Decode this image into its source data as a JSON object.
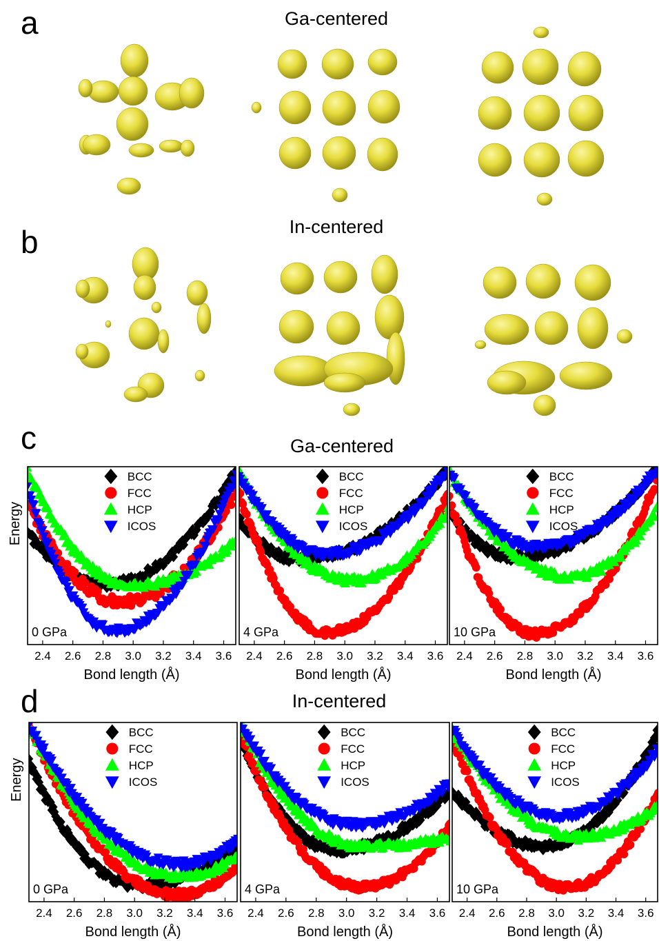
{
  "figure": {
    "panel_letters": [
      "a",
      "b",
      "c",
      "d"
    ],
    "row_headings": {
      "a": "Ga-centered",
      "b": "In-centered",
      "c": "Ga-centered",
      "d": "In-centered"
    },
    "isosurface_color": "#e6dc3c"
  },
  "chart_data": [
    {
      "type": "scatter",
      "id": "c-0",
      "annotation": "0 GPa",
      "xlabel": "Bond length (Å)",
      "ylabel": "Energy",
      "xlim": [
        2.3,
        3.68
      ],
      "ylim": [
        0,
        1
      ],
      "xticks": [
        "2.4",
        "2.6",
        "2.8",
        "3.0",
        "3.2",
        "3.4",
        "3.6"
      ],
      "legend": "top-center",
      "series": [
        {
          "name": "BCC",
          "color": "#000000",
          "marker": "diamond",
          "min_x": 2.82,
          "min_y": 0.34,
          "left_y": 0.63,
          "right_y": 0.98
        },
        {
          "name": "FCC",
          "color": "#ff0000",
          "marker": "circle",
          "min_x": 2.93,
          "min_y": 0.24,
          "left_y": 0.8,
          "right_y": 0.86
        },
        {
          "name": "HCP",
          "color": "#00ff00",
          "marker": "triangle-up",
          "min_x": 3.0,
          "min_y": 0.33,
          "left_y": 0.97,
          "right_y": 0.58
        },
        {
          "name": "ICOS",
          "color": "#0000ff",
          "marker": "triangle-down",
          "min_x": 2.88,
          "min_y": 0.08,
          "left_y": 0.88,
          "right_y": 0.95
        }
      ]
    },
    {
      "type": "scatter",
      "id": "c-4",
      "annotation": "4 GPa",
      "xlabel": "Bond length (Å)",
      "ylabel": "",
      "xlim": [
        2.3,
        3.68
      ],
      "ylim": [
        0,
        1
      ],
      "xticks": [
        "2.4",
        "2.6",
        "2.8",
        "3.0",
        "3.2",
        "3.4",
        "3.6"
      ],
      "legend": "top-center",
      "series": [
        {
          "name": "BCC",
          "color": "#000000",
          "marker": "diamond",
          "min_x": 2.7,
          "min_y": 0.48,
          "left_y": 0.7,
          "right_y": 0.98
        },
        {
          "name": "FCC",
          "color": "#ff0000",
          "marker": "circle",
          "min_x": 2.88,
          "min_y": 0.07,
          "left_y": 0.86,
          "right_y": 0.84
        },
        {
          "name": "HCP",
          "color": "#00ff00",
          "marker": "triangle-up",
          "min_x": 3.05,
          "min_y": 0.36,
          "left_y": 0.97,
          "right_y": 0.75
        },
        {
          "name": "ICOS",
          "color": "#0000ff",
          "marker": "triangle-down",
          "min_x": 2.88,
          "min_y": 0.51,
          "left_y": 0.95,
          "right_y": 0.98
        }
      ]
    },
    {
      "type": "scatter",
      "id": "c-10",
      "annotation": "10 GPa",
      "xlabel": "Bond length (Å)",
      "ylabel": "",
      "xlim": [
        2.3,
        3.68
      ],
      "ylim": [
        0,
        1
      ],
      "xticks": [
        "2.4",
        "2.6",
        "2.8",
        "3.0",
        "3.2",
        "3.4",
        "3.6"
      ],
      "legend": "top-center",
      "series": [
        {
          "name": "BCC",
          "color": "#000000",
          "marker": "diamond",
          "min_x": 2.72,
          "min_y": 0.49,
          "left_y": 0.76,
          "right_y": 0.99
        },
        {
          "name": "FCC",
          "color": "#ff0000",
          "marker": "circle",
          "min_x": 2.86,
          "min_y": 0.06,
          "left_y": 0.82,
          "right_y": 0.94
        },
        {
          "name": "HCP",
          "color": "#00ff00",
          "marker": "triangle-up",
          "min_x": 3.1,
          "min_y": 0.38,
          "left_y": 0.97,
          "right_y": 0.76
        },
        {
          "name": "ICOS",
          "color": "#0000ff",
          "marker": "triangle-down",
          "min_x": 2.88,
          "min_y": 0.55,
          "left_y": 0.96,
          "right_y": 0.99
        }
      ]
    },
    {
      "type": "scatter",
      "id": "d-0",
      "annotation": "0 GPa",
      "xlabel": "Bond length (Å)",
      "ylabel": "Energy",
      "xlim": [
        2.3,
        3.68
      ],
      "ylim": [
        0,
        1
      ],
      "xticks": [
        "2.4",
        "2.6",
        "2.8",
        "3.0",
        "3.2",
        "3.4",
        "3.6"
      ],
      "legend": "top-center",
      "series": [
        {
          "name": "BCC",
          "color": "#000000",
          "marker": "diamond",
          "min_x": 3.02,
          "min_y": 0.09,
          "left_y": 0.78,
          "right_y": 0.3
        },
        {
          "name": "FCC",
          "color": "#ff0000",
          "marker": "circle",
          "min_x": 3.28,
          "min_y": 0.04,
          "left_y": 0.99,
          "right_y": 0.2
        },
        {
          "name": "HCP",
          "color": "#00ff00",
          "marker": "triangle-up",
          "min_x": 3.3,
          "min_y": 0.14,
          "left_y": 0.99,
          "right_y": 0.25
        },
        {
          "name": "ICOS",
          "color": "#0000ff",
          "marker": "triangle-down",
          "min_x": 3.3,
          "min_y": 0.21,
          "left_y": 0.99,
          "right_y": 0.34
        }
      ]
    },
    {
      "type": "scatter",
      "id": "d-4",
      "annotation": "4 GPa",
      "xlabel": "Bond length (Å)",
      "ylabel": "",
      "xlim": [
        2.3,
        3.68
      ],
      "ylim": [
        0,
        1
      ],
      "xticks": [
        "2.4",
        "2.6",
        "2.8",
        "3.0",
        "3.2",
        "3.4",
        "3.6"
      ],
      "legend": "top-center",
      "series": [
        {
          "name": "BCC",
          "color": "#000000",
          "marker": "diamond",
          "min_x": 2.93,
          "min_y": 0.29,
          "left_y": 0.9,
          "right_y": 0.62
        },
        {
          "name": "FCC",
          "color": "#ff0000",
          "marker": "circle",
          "min_x": 3.1,
          "min_y": 0.08,
          "left_y": 0.93,
          "right_y": 0.42
        },
        {
          "name": "HCP",
          "color": "#00ff00",
          "marker": "triangle-up",
          "min_x": 3.1,
          "min_y": 0.31,
          "left_y": 0.99,
          "right_y": 0.35
        },
        {
          "name": "ICOS",
          "color": "#0000ff",
          "marker": "triangle-down",
          "min_x": 3.05,
          "min_y": 0.43,
          "left_y": 0.99,
          "right_y": 0.66
        }
      ]
    },
    {
      "type": "scatter",
      "id": "d-10",
      "annotation": "10 GPa",
      "xlabel": "Bond length (Å)",
      "ylabel": "",
      "xlim": [
        2.3,
        3.68
      ],
      "ylim": [
        0,
        1
      ],
      "xticks": [
        "2.4",
        "2.6",
        "2.8",
        "3.0",
        "3.2",
        "3.4",
        "3.6"
      ],
      "legend": "top-center",
      "series": [
        {
          "name": "BCC",
          "color": "#000000",
          "marker": "diamond",
          "min_x": 2.92,
          "min_y": 0.31,
          "left_y": 0.62,
          "right_y": 0.95
        },
        {
          "name": "FCC",
          "color": "#ff0000",
          "marker": "circle",
          "min_x": 3.07,
          "min_y": 0.08,
          "left_y": 0.92,
          "right_y": 0.6
        },
        {
          "name": "HCP",
          "color": "#00ff00",
          "marker": "triangle-up",
          "min_x": 3.15,
          "min_y": 0.36,
          "left_y": 0.96,
          "right_y": 0.53
        },
        {
          "name": "ICOS",
          "color": "#0000ff",
          "marker": "triangle-down",
          "min_x": 3.02,
          "min_y": 0.48,
          "left_y": 0.96,
          "right_y": 0.85
        }
      ]
    }
  ]
}
